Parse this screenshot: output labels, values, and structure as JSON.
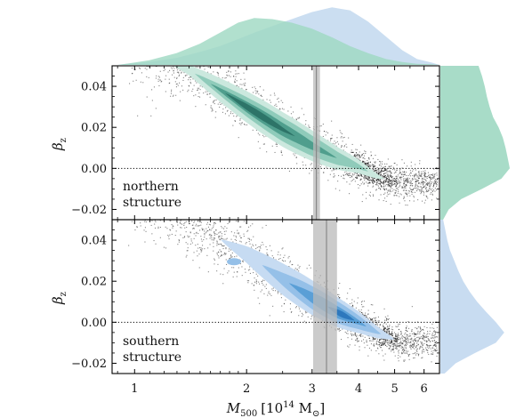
{
  "chart_data": {
    "type": "scatter",
    "x_label": {
      "main": "M",
      "sub": "500",
      "unit_pre": "[10",
      "unit_exp": "14",
      "unit_post": " M",
      "unit_sun": "⊙",
      "unit_close": "]"
    },
    "x_scale": "log",
    "x_ticks": [
      {
        "value": 1,
        "label": "1"
      },
      {
        "value": 2,
        "label": "2"
      },
      {
        "value": 3,
        "label": "3"
      },
      {
        "value": 4,
        "label": "4"
      },
      {
        "value": 5,
        "label": "5"
      },
      {
        "value": 6,
        "label": "6"
      }
    ],
    "x_minor_ticks": [
      0.9,
      1.1,
      1.2,
      1.3,
      1.4,
      1.5,
      1.6,
      1.7,
      1.8,
      1.9,
      2.5,
      3.5,
      4.5,
      5.5
    ],
    "xlim": [
      0.87,
      6.6
    ],
    "y_label": {
      "main": "β",
      "sub": "z"
    },
    "ylim": [
      -0.025,
      0.05
    ],
    "y_ticks": [
      {
        "value": 0.04,
        "label": "0.04"
      },
      {
        "value": 0.02,
        "label": "0.02"
      },
      {
        "value": 0.0,
        "label": "0.00"
      },
      {
        "value": -0.02,
        "label": "−0.02"
      }
    ],
    "colors": {
      "north_levels": [
        "#cbe8de",
        "#8fcbba",
        "#4f9e8d",
        "#2d7468"
      ],
      "south_levels": [
        "#c6dbf2",
        "#95c0e8",
        "#5a9fd6",
        "#2d78bd"
      ],
      "north_hist": "#9ed8c2",
      "south_hist": "#c2d8ef",
      "points": "#222222",
      "band": "#b9b9b9",
      "band_line": "#888888"
    },
    "panels": [
      {
        "name": "northern",
        "label_lines": [
          "northern",
          "structure"
        ],
        "ridge": [
          [
            0.96,
            0.058
          ],
          [
            1.4,
            0.048
          ],
          [
            2.0,
            0.03
          ],
          [
            2.5,
            0.019
          ],
          [
            3.0,
            0.011
          ],
          [
            3.5,
            0.005
          ],
          [
            4.0,
            0.001
          ],
          [
            4.5,
            -0.004
          ],
          [
            5.1,
            -0.007
          ]
        ],
        "contour_levels": [
          {
            "level": 1,
            "ridge_range": [
              1.25,
              4.7
            ],
            "half_width": 0.0085
          },
          {
            "level": 2,
            "ridge_range": [
              1.45,
              4.25
            ],
            "half_width": 0.0058
          },
          {
            "level": 3,
            "ridge_range": [
              1.6,
              3.5
            ],
            "half_width": 0.0033
          },
          {
            "level": 4,
            "ridge_range": [
              1.75,
              2.7
            ],
            "half_width": 0.0018
          }
        ],
        "band": {
          "x_range": [
            3.02,
            3.15
          ],
          "line": 3.08
        }
      },
      {
        "name": "southern",
        "label_lines": [
          "southern",
          "structure"
        ],
        "ridge": [
          [
            1.0,
            0.058
          ],
          [
            1.5,
            0.046
          ],
          [
            2.0,
            0.033
          ],
          [
            2.5,
            0.021
          ],
          [
            3.0,
            0.012
          ],
          [
            3.5,
            0.005
          ],
          [
            4.0,
            0.0
          ],
          [
            4.5,
            -0.005
          ],
          [
            5.1,
            -0.009
          ]
        ],
        "contour_levels": [
          {
            "level": 1,
            "ridge_range": [
              1.7,
              5.0
            ],
            "half_width": 0.0085
          },
          {
            "level": 2,
            "ridge_range": [
              2.2,
              4.6
            ],
            "half_width": 0.0058
          },
          {
            "level": 3,
            "ridge_range": [
              2.6,
              4.2
            ],
            "half_width": 0.0032
          },
          {
            "level": 4,
            "ridge_range": [
              3.3,
              3.9
            ],
            "half_width": 0.0015
          }
        ],
        "island": {
          "x": 1.85,
          "y": 0.0295
        },
        "band": {
          "x_range": [
            3.02,
            3.5
          ],
          "line": 3.28
        }
      }
    ],
    "top_marginal": {
      "bins": [
        0.9,
        1.0,
        1.2,
        1.4,
        1.6,
        1.8,
        2.0,
        2.2,
        2.5,
        2.8,
        3.2,
        3.6,
        4.0,
        4.5,
        5.0,
        5.5,
        6.0,
        6.6
      ],
      "north": [
        0.02,
        0.08,
        0.2,
        0.36,
        0.55,
        0.72,
        0.8,
        0.78,
        0.72,
        0.62,
        0.47,
        0.32,
        0.2,
        0.1,
        0.05,
        0.02,
        0.01
      ],
      "south": [
        0.02,
        0.05,
        0.12,
        0.22,
        0.32,
        0.44,
        0.55,
        0.66,
        0.78,
        0.9,
        0.98,
        0.93,
        0.74,
        0.48,
        0.25,
        0.1,
        0.04
      ]
    },
    "right_marginal_north": {
      "y": [
        0.05,
        0.045,
        0.04,
        0.035,
        0.03,
        0.025,
        0.02,
        0.015,
        0.01,
        0.005,
        0.0,
        -0.005,
        -0.01,
        -0.015,
        -0.02,
        -0.025
      ],
      "density": [
        0.55,
        0.6,
        0.64,
        0.67,
        0.71,
        0.76,
        0.84,
        0.9,
        0.94,
        0.97,
        1.0,
        0.88,
        0.6,
        0.3,
        0.12,
        0.04
      ]
    },
    "right_marginal_south": {
      "y": [
        0.05,
        0.045,
        0.04,
        0.035,
        0.03,
        0.025,
        0.02,
        0.015,
        0.01,
        0.005,
        0.0,
        -0.005,
        -0.01,
        -0.015,
        -0.02,
        -0.025
      ],
      "density": [
        0.04,
        0.07,
        0.1,
        0.14,
        0.2,
        0.26,
        0.33,
        0.42,
        0.53,
        0.66,
        0.8,
        0.92,
        0.8,
        0.5,
        0.22,
        0.06
      ]
    },
    "n_scatter_points": 2200
  }
}
